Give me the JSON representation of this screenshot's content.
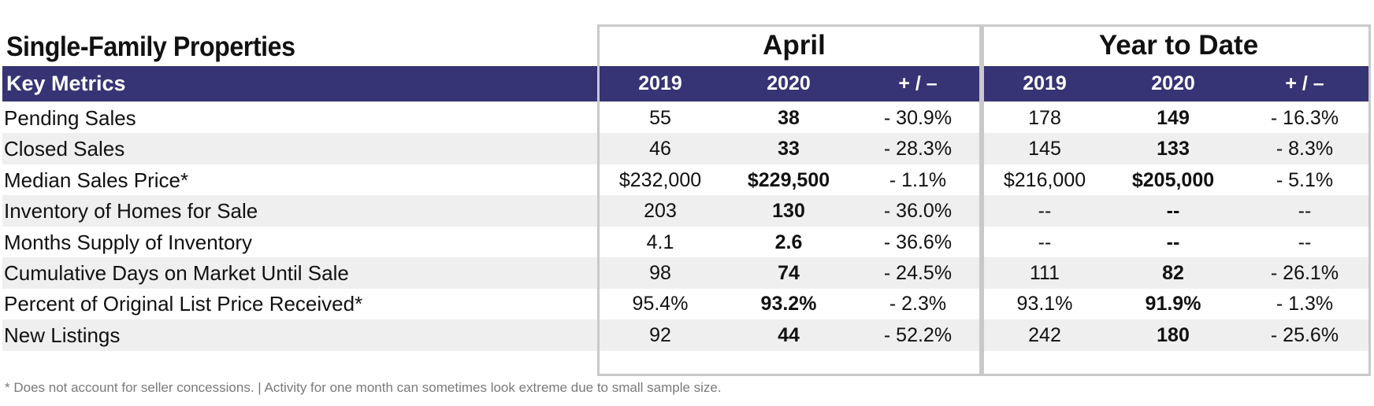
{
  "title": "Single-Family Properties",
  "groups": {
    "april": "April",
    "ytd": "Year to Date"
  },
  "header": {
    "key_metrics": "Key Metrics",
    "y2019": "2019",
    "y2020": "2020",
    "change": "+ / –"
  },
  "rows": [
    {
      "label": "Pending Sales",
      "april_2019": "55",
      "april_2020": "38",
      "april_change": "- 30.9%",
      "ytd_2019": "178",
      "ytd_2020": "149",
      "ytd_change": "- 16.3%"
    },
    {
      "label": "Closed Sales",
      "april_2019": "46",
      "april_2020": "33",
      "april_change": "- 28.3%",
      "ytd_2019": "145",
      "ytd_2020": "133",
      "ytd_change": "- 8.3%"
    },
    {
      "label": "Median Sales Price*",
      "april_2019": "$232,000",
      "april_2020": "$229,500",
      "april_change": "- 1.1%",
      "ytd_2019": "$216,000",
      "ytd_2020": "$205,000",
      "ytd_change": "- 5.1%"
    },
    {
      "label": "Inventory of Homes for Sale",
      "april_2019": "203",
      "april_2020": "130",
      "april_change": "- 36.0%",
      "ytd_2019": "--",
      "ytd_2020": "--",
      "ytd_change": "--"
    },
    {
      "label": "Months Supply of Inventory",
      "april_2019": "4.1",
      "april_2020": "2.6",
      "april_change": "- 36.6%",
      "ytd_2019": "--",
      "ytd_2020": "--",
      "ytd_change": "--"
    },
    {
      "label": "Cumulative Days on Market Until Sale",
      "april_2019": "98",
      "april_2020": "74",
      "april_change": "- 24.5%",
      "ytd_2019": "111",
      "ytd_2020": "82",
      "ytd_change": "- 26.1%"
    },
    {
      "label": "Percent of Original List Price Received*",
      "april_2019": "95.4%",
      "april_2020": "93.2%",
      "april_change": "- 2.3%",
      "ytd_2019": "93.1%",
      "ytd_2020": "91.9%",
      "ytd_change": "- 1.3%"
    },
    {
      "label": "New Listings",
      "april_2019": "92",
      "april_2020": "44",
      "april_change": "- 52.2%",
      "ytd_2019": "242",
      "ytd_2020": "180",
      "ytd_change": "- 25.6%"
    }
  ],
  "footnote": "* Does not account for seller concessions.  |  Activity for one month can sometimes look extreme due to small sample size.",
  "colors": {
    "header_bg": "#363474",
    "row_shade": "#efefef",
    "box_border": "#c9c9c9",
    "footnote": "#7a7a7a"
  }
}
